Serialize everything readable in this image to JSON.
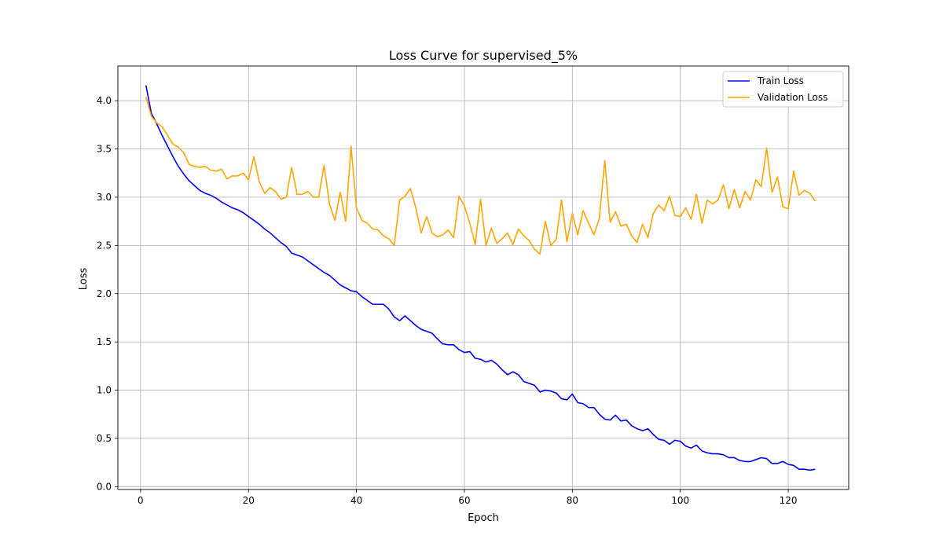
{
  "chart_data": {
    "type": "line",
    "title": "Loss Curve for supervised_5%",
    "xlabel": "Epoch",
    "ylabel": "Loss",
    "xlim": [
      -4.2,
      131.2
    ],
    "ylim": [
      -0.03,
      4.36
    ],
    "xticks": [
      0,
      20,
      40,
      60,
      80,
      100,
      120
    ],
    "yticks": [
      0.0,
      0.5,
      1.0,
      1.5,
      2.0,
      2.5,
      3.0,
      3.5,
      4.0
    ],
    "ytick_labels": [
      "0.0",
      "0.5",
      "1.0",
      "1.5",
      "2.0",
      "2.5",
      "3.0",
      "3.5",
      "4.0"
    ],
    "grid": true,
    "legend_position": "top-right",
    "x_start": 1,
    "series": [
      {
        "name": "Train Loss",
        "color": "#0000ff",
        "values": [
          4.16,
          3.87,
          3.76,
          3.64,
          3.53,
          3.42,
          3.32,
          3.24,
          3.17,
          3.12,
          3.07,
          3.04,
          3.02,
          2.99,
          2.95,
          2.92,
          2.89,
          2.87,
          2.84,
          2.8,
          2.76,
          2.72,
          2.67,
          2.63,
          2.58,
          2.53,
          2.49,
          2.42,
          2.4,
          2.38,
          2.34,
          2.3,
          2.26,
          2.22,
          2.19,
          2.14,
          2.09,
          2.06,
          2.03,
          2.02,
          1.97,
          1.93,
          1.89,
          1.89,
          1.89,
          1.84,
          1.76,
          1.72,
          1.77,
          1.72,
          1.67,
          1.63,
          1.61,
          1.59,
          1.53,
          1.48,
          1.47,
          1.47,
          1.42,
          1.39,
          1.4,
          1.33,
          1.32,
          1.29,
          1.31,
          1.27,
          1.21,
          1.16,
          1.19,
          1.16,
          1.09,
          1.07,
          1.05,
          0.98,
          1.0,
          0.99,
          0.97,
          0.91,
          0.9,
          0.96,
          0.87,
          0.86,
          0.82,
          0.82,
          0.75,
          0.7,
          0.69,
          0.74,
          0.68,
          0.69,
          0.63,
          0.6,
          0.58,
          0.6,
          0.54,
          0.49,
          0.48,
          0.44,
          0.48,
          0.47,
          0.42,
          0.4,
          0.43,
          0.37,
          0.35,
          0.34,
          0.34,
          0.33,
          0.3,
          0.3,
          0.27,
          0.26,
          0.26,
          0.28,
          0.3,
          0.29,
          0.24,
          0.24,
          0.26,
          0.23,
          0.22,
          0.18,
          0.18,
          0.17,
          0.18
        ]
      },
      {
        "name": "Validation Loss",
        "color": "#ffa500",
        "values": [
          4.04,
          3.84,
          3.77,
          3.73,
          3.64,
          3.55,
          3.52,
          3.46,
          3.34,
          3.32,
          3.31,
          3.32,
          3.28,
          3.27,
          3.29,
          3.19,
          3.22,
          3.22,
          3.25,
          3.18,
          3.42,
          3.16,
          3.04,
          3.1,
          3.06,
          2.98,
          3.0,
          3.31,
          3.03,
          3.03,
          3.06,
          3.0,
          3.0,
          3.33,
          2.93,
          2.76,
          3.05,
          2.75,
          3.53,
          2.89,
          2.76,
          2.73,
          2.67,
          2.66,
          2.6,
          2.57,
          2.5,
          2.97,
          3.01,
          3.09,
          2.89,
          2.63,
          2.8,
          2.63,
          2.59,
          2.61,
          2.66,
          2.58,
          3.01,
          2.91,
          2.73,
          2.51,
          2.98,
          2.5,
          2.68,
          2.52,
          2.57,
          2.63,
          2.51,
          2.67,
          2.6,
          2.55,
          2.46,
          2.41,
          2.75,
          2.5,
          2.56,
          2.97,
          2.54,
          2.83,
          2.61,
          2.86,
          2.73,
          2.61,
          2.78,
          3.38,
          2.74,
          2.85,
          2.7,
          2.72,
          2.6,
          2.53,
          2.72,
          2.58,
          2.83,
          2.92,
          2.86,
          3.01,
          2.81,
          2.8,
          2.89,
          2.77,
          3.03,
          2.73,
          2.97,
          2.93,
          2.97,
          3.13,
          2.88,
          3.08,
          2.89,
          3.06,
          2.97,
          3.18,
          3.11,
          3.51,
          3.05,
          3.21,
          2.9,
          2.88,
          3.27,
          3.02,
          3.07,
          3.04,
          2.96
        ]
      }
    ]
  }
}
